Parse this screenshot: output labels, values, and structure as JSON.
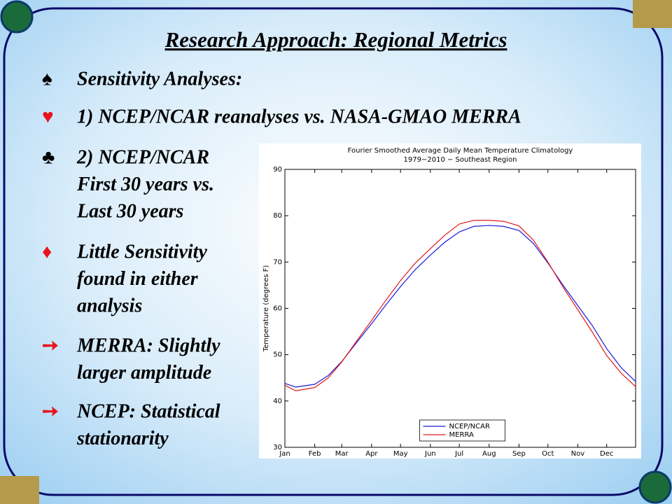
{
  "slide": {
    "title": "Research Approach:  Regional Metrics",
    "items": [
      {
        "bullet": "♠",
        "color": "#000000",
        "lines": [
          "Sensitivity Analyses:"
        ]
      },
      {
        "bullet": "♥",
        "color": "#e8141e",
        "lines": [
          "1) NCEP/NCAR reanalyses vs. NASA-GMAO MERRA"
        ]
      },
      {
        "bullet": "♣",
        "color": "#000000",
        "lines": [
          "2) NCEP/NCAR",
          "First 30 years vs.",
          "Last 30 years"
        ]
      },
      {
        "bullet": "♦",
        "color": "#e8141e",
        "lines": [
          "Little Sensitivity",
          "found in either",
          "analysis"
        ]
      },
      {
        "bullet": "➙",
        "color": "#e8141e",
        "lines": [
          "MERRA: Slightly",
          "larger amplitude"
        ]
      },
      {
        "bullet": "➙",
        "color": "#e8141e",
        "lines": [
          "NCEP: Statistical",
          "stationarity"
        ]
      }
    ]
  },
  "chart_data": {
    "type": "line",
    "title": "Fourier Smoothed Average Daily Mean Temperature Climatology",
    "subtitle": "1979−2010 − Southeast Region",
    "y_label": "Temperature (degrees F)",
    "x": [
      1,
      12,
      32,
      46,
      60,
      75,
      91,
      106,
      121,
      136,
      152,
      167,
      182,
      197,
      213,
      228,
      244,
      259,
      274,
      289,
      305,
      320,
      335,
      350,
      365
    ],
    "series": [
      {
        "name": "NCEP/NCAR",
        "color": "#1a1adb",
        "values": [
          43.8,
          43.0,
          43.6,
          45.5,
          48.5,
          52.5,
          56.7,
          60.8,
          64.7,
          68.3,
          71.5,
          74.3,
          76.5,
          77.7,
          77.9,
          77.7,
          76.8,
          74.0,
          69.8,
          65.2,
          60.6,
          56.3,
          51.3,
          47.2,
          44.2
        ]
      },
      {
        "name": "MERRA",
        "color": "#e01a1a",
        "values": [
          43.4,
          42.2,
          42.9,
          45.0,
          48.4,
          52.8,
          57.4,
          61.8,
          66.0,
          69.7,
          72.9,
          75.8,
          78.2,
          79.0,
          79.0,
          78.8,
          77.8,
          74.7,
          70.0,
          64.8,
          59.7,
          54.9,
          49.8,
          46.0,
          43.1
        ]
      }
    ],
    "xlim": [
      1,
      365
    ],
    "xticks": [
      {
        "value": 1,
        "label": "Jan"
      },
      {
        "value": 32,
        "label": "Feb"
      },
      {
        "value": 60,
        "label": "Mar"
      },
      {
        "value": 91,
        "label": "Apr"
      },
      {
        "value": 121,
        "label": "May"
      },
      {
        "value": 152,
        "label": "Jun"
      },
      {
        "value": 182,
        "label": "Jul"
      },
      {
        "value": 213,
        "label": "Aug"
      },
      {
        "value": 244,
        "label": "Sep"
      },
      {
        "value": 274,
        "label": "Oct"
      },
      {
        "value": 305,
        "label": "Nov"
      },
      {
        "value": 335,
        "label": "Dec"
      }
    ],
    "ylim": [
      30,
      90
    ],
    "yticks": [
      30,
      40,
      50,
      60,
      70,
      80,
      90
    ],
    "grid": false,
    "legend": "lower center"
  }
}
